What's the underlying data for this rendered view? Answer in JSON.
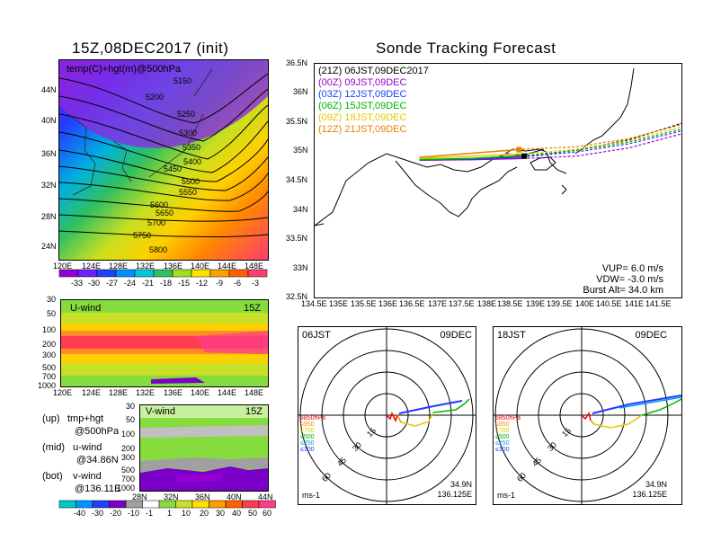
{
  "main_map": {
    "title": "15Z,08DEC2017 (init)",
    "label": "temp(C)+hgt(m)@500hPa",
    "lat_ticks": [
      "44N",
      "40N",
      "36N",
      "32N",
      "28N",
      "24N"
    ],
    "lon_ticks": [
      "120E",
      "124E",
      "128E",
      "132E",
      "136E",
      "140E",
      "144E",
      "148E"
    ],
    "contours": [
      "5150",
      "5200",
      "5250",
      "5300",
      "5350",
      "5400",
      "5450",
      "5500",
      "5550",
      "5600",
      "5650",
      "5700",
      "5750",
      "5800"
    ],
    "colorbar_labels": [
      "-33",
      "-30",
      "-27",
      "-24",
      "-21",
      "-18",
      "-15",
      "-12",
      "-9",
      "-6",
      "-3"
    ]
  },
  "uwind": {
    "label": "U-wind",
    "time": "15Z",
    "y_ticks": [
      "30",
      "50",
      "100",
      "200",
      "300",
      "500",
      "700",
      "1000"
    ],
    "x_ticks": [
      "120E",
      "124E",
      "128E",
      "132E",
      "136E",
      "140E",
      "144E",
      "148E"
    ]
  },
  "vwind": {
    "label": "V-wind",
    "time": "15Z",
    "y_ticks": [
      "30",
      "50",
      "100",
      "200",
      "300",
      "500",
      "700",
      "1000"
    ],
    "x_ticks": [
      "28N",
      "32N",
      "36N",
      "40N",
      "44N"
    ],
    "colorbar_labels": [
      "-40",
      "-30",
      "-20",
      "-10",
      "-1",
      "1",
      "10",
      "20",
      "30",
      "40",
      "50",
      "60"
    ]
  },
  "legend_notes": [
    {
      "key": "(up)",
      "line1": "tmp+hgt",
      "line2": "@500hPa"
    },
    {
      "key": "(mid)",
      "line1": "u-wind",
      "line2": "@34.86N"
    },
    {
      "key": "(bot)",
      "line1": "v-wind",
      "line2": "@136.11E"
    }
  ],
  "tracking": {
    "title": "Sonde Tracking Forecast",
    "header": "(21Z) 06JST,09DEC2017",
    "entries": [
      {
        "text": "(00Z) 09JST,09DEC",
        "color": "#a000c8"
      },
      {
        "text": "(03Z) 12JST,09DEC",
        "color": "#1e3cff"
      },
      {
        "text": "(06Z) 15JST,09DEC",
        "color": "#00b400"
      },
      {
        "text": "(09Z) 18JST,09DEC",
        "color": "#e6c800"
      },
      {
        "text": "(12Z) 21JST,09DEC",
        "color": "#e68200"
      }
    ],
    "lat_ticks": [
      "36.5N",
      "36N",
      "35.5N",
      "35N",
      "34.5N",
      "34N",
      "33.5N",
      "33N",
      "32.5N"
    ],
    "lon_ticks": [
      "134.5E",
      "135E",
      "135.5E",
      "136E",
      "136.5E",
      "137E",
      "137.5E",
      "138E",
      "138.5E",
      "139E",
      "139.5E",
      "140E",
      "140.5E",
      "141E",
      "141.5E"
    ],
    "vup": "VUP=  6.0  m/s",
    "vdw": "VDW= -3.0  m/s",
    "burst": "Burst Alt= 34.0  km"
  },
  "hodographs": [
    {
      "time": "06JST",
      "date": "09DEC",
      "lat": "34.9N",
      "lon": "136.125E",
      "unit": "ms-1",
      "ring_labels": [
        "15",
        "30",
        "45",
        "60"
      ]
    },
    {
      "time": "18JST",
      "date": "09DEC",
      "lat": "34.9N",
      "lon": "136.125E",
      "unit": "ms-1",
      "ring_labels": [
        "15",
        "30",
        "45",
        "60"
      ]
    }
  ],
  "hodo_levels": [
    {
      "text": "≥850hPa",
      "color": "#e60000"
    },
    {
      "text": "≤850",
      "color": "#ff8c00"
    },
    {
      "text": "≤700",
      "color": "#e6c800"
    },
    {
      "text": "≤500",
      "color": "#00b400"
    },
    {
      "text": "≤250",
      "color": "#00a0dc"
    },
    {
      "text": "≤100",
      "color": "#1e3cff"
    }
  ],
  "chart_data": [
    {
      "type": "heatmap",
      "title": "15Z,08DEC2017 (init)",
      "quantity": "temp(C)+hgt(m)@500hPa",
      "contour_levels": [
        5150,
        5200,
        5250,
        5300,
        5350,
        5400,
        5450,
        5500,
        5550,
        5600,
        5650,
        5700,
        5750,
        5800
      ],
      "colorbar": [
        -33,
        -30,
        -27,
        -24,
        -21,
        -18,
        -15,
        -12,
        -9,
        -6,
        -3
      ]
    },
    {
      "type": "heatmap",
      "title": "U-wind",
      "xlim": [
        120,
        149
      ],
      "y_levels_hPa": [
        30,
        50,
        100,
        200,
        300,
        500,
        700,
        1000
      ]
    },
    {
      "type": "heatmap",
      "title": "V-wind",
      "xlim": [
        28,
        44
      ],
      "y_levels_hPa": [
        30,
        50,
        100,
        200,
        300,
        500,
        700,
        1000
      ],
      "colorbar": [
        -40,
        -30,
        -20,
        -10,
        -1,
        1,
        10,
        20,
        30,
        40,
        50,
        60
      ]
    },
    {
      "type": "line",
      "title": "Sonde Tracking Forecast",
      "xlim": [
        134.5,
        141.5
      ],
      "ylim": [
        32.5,
        36.5
      ],
      "series": [
        {
          "name": "(21Z) 06JST,09DEC2017",
          "x": [
            136.5,
            137.5,
            138.5,
            139.5,
            140.5,
            141.5
          ],
          "y": [
            34.86,
            34.87,
            34.92,
            35.02,
            35.2,
            35.48
          ]
        },
        {
          "name": "(00Z) 09JST,09DEC",
          "x": [
            136.5,
            137.5,
            138.5,
            139.5,
            140.5,
            141.5
          ],
          "y": [
            34.85,
            34.86,
            34.88,
            34.92,
            35.06,
            35.3
          ]
        },
        {
          "name": "(03Z) 12JST,09DEC",
          "x": [
            136.5,
            137.5,
            138.5,
            139.5,
            140.5,
            141.5
          ],
          "y": [
            34.86,
            34.87,
            34.91,
            34.99,
            35.13,
            35.35
          ]
        },
        {
          "name": "(06Z) 15JST,09DEC",
          "x": [
            136.5,
            137.5,
            138.5,
            139.5,
            140.5,
            141.5
          ],
          "y": [
            34.86,
            34.88,
            34.93,
            35.02,
            35.16,
            35.38
          ]
        },
        {
          "name": "(09Z) 18JST,09DEC",
          "x": [
            136.5,
            137.5,
            138.5,
            139.5,
            140.5,
            141.5
          ],
          "y": [
            34.88,
            34.92,
            34.96,
            35.04,
            35.18,
            35.42
          ]
        },
        {
          "name": "(12Z) 21JST,09DEC",
          "x": [
            136.5,
            137.5,
            138.5,
            139.5,
            140.5,
            141.5
          ],
          "y": [
            34.9,
            34.97,
            35.04,
            35.08,
            35.22,
            35.46
          ]
        }
      ]
    }
  ],
  "colors": {
    "hodo_red": "#e60000",
    "hodo_orange": "#ff8c00",
    "hodo_yellow": "#e6c800",
    "hodo_green": "#00b400",
    "hodo_cyan": "#00a0dc",
    "hodo_blue": "#1e3cff"
  }
}
